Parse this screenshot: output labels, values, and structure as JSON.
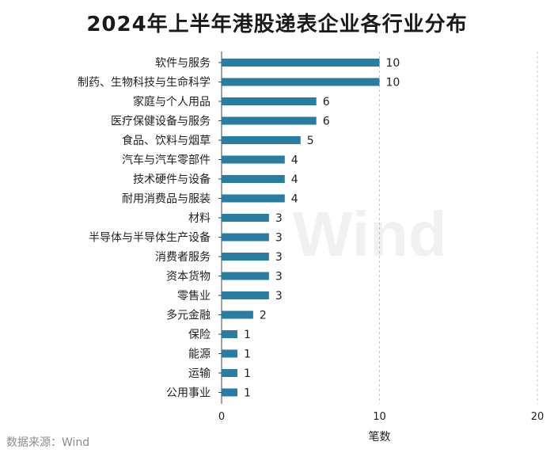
{
  "page": {
    "title": "2024年上半年港股递表企业各行业分布",
    "source": "数据来源：Wind",
    "watermark": "Wind"
  },
  "chart_data": {
    "type": "bar",
    "orientation": "horizontal",
    "title": "2024年上半年港股递表企业各行业分布",
    "xlabel": "笔数",
    "ylabel": "",
    "xlim": [
      0,
      20
    ],
    "xticks": [
      0,
      10,
      20
    ],
    "grid": "vertical-dashed",
    "bar_color": "#2a7ca0",
    "categories": [
      "软件与服务",
      "制药、生物科技与生命科学",
      "家庭与个人用品",
      "医疗保健设备与服务",
      "食品、饮料与烟草",
      "汽车与汽车零部件",
      "技术硬件与设备",
      "耐用消费品与服装",
      "材料",
      "半导体与半导体生产设备",
      "消费者服务",
      "资本货物",
      "零售业",
      "多元金融",
      "保险",
      "能源",
      "运输",
      "公用事业"
    ],
    "values": [
      10,
      10,
      6,
      6,
      5,
      4,
      4,
      4,
      3,
      3,
      3,
      3,
      3,
      2,
      1,
      1,
      1,
      1
    ]
  }
}
